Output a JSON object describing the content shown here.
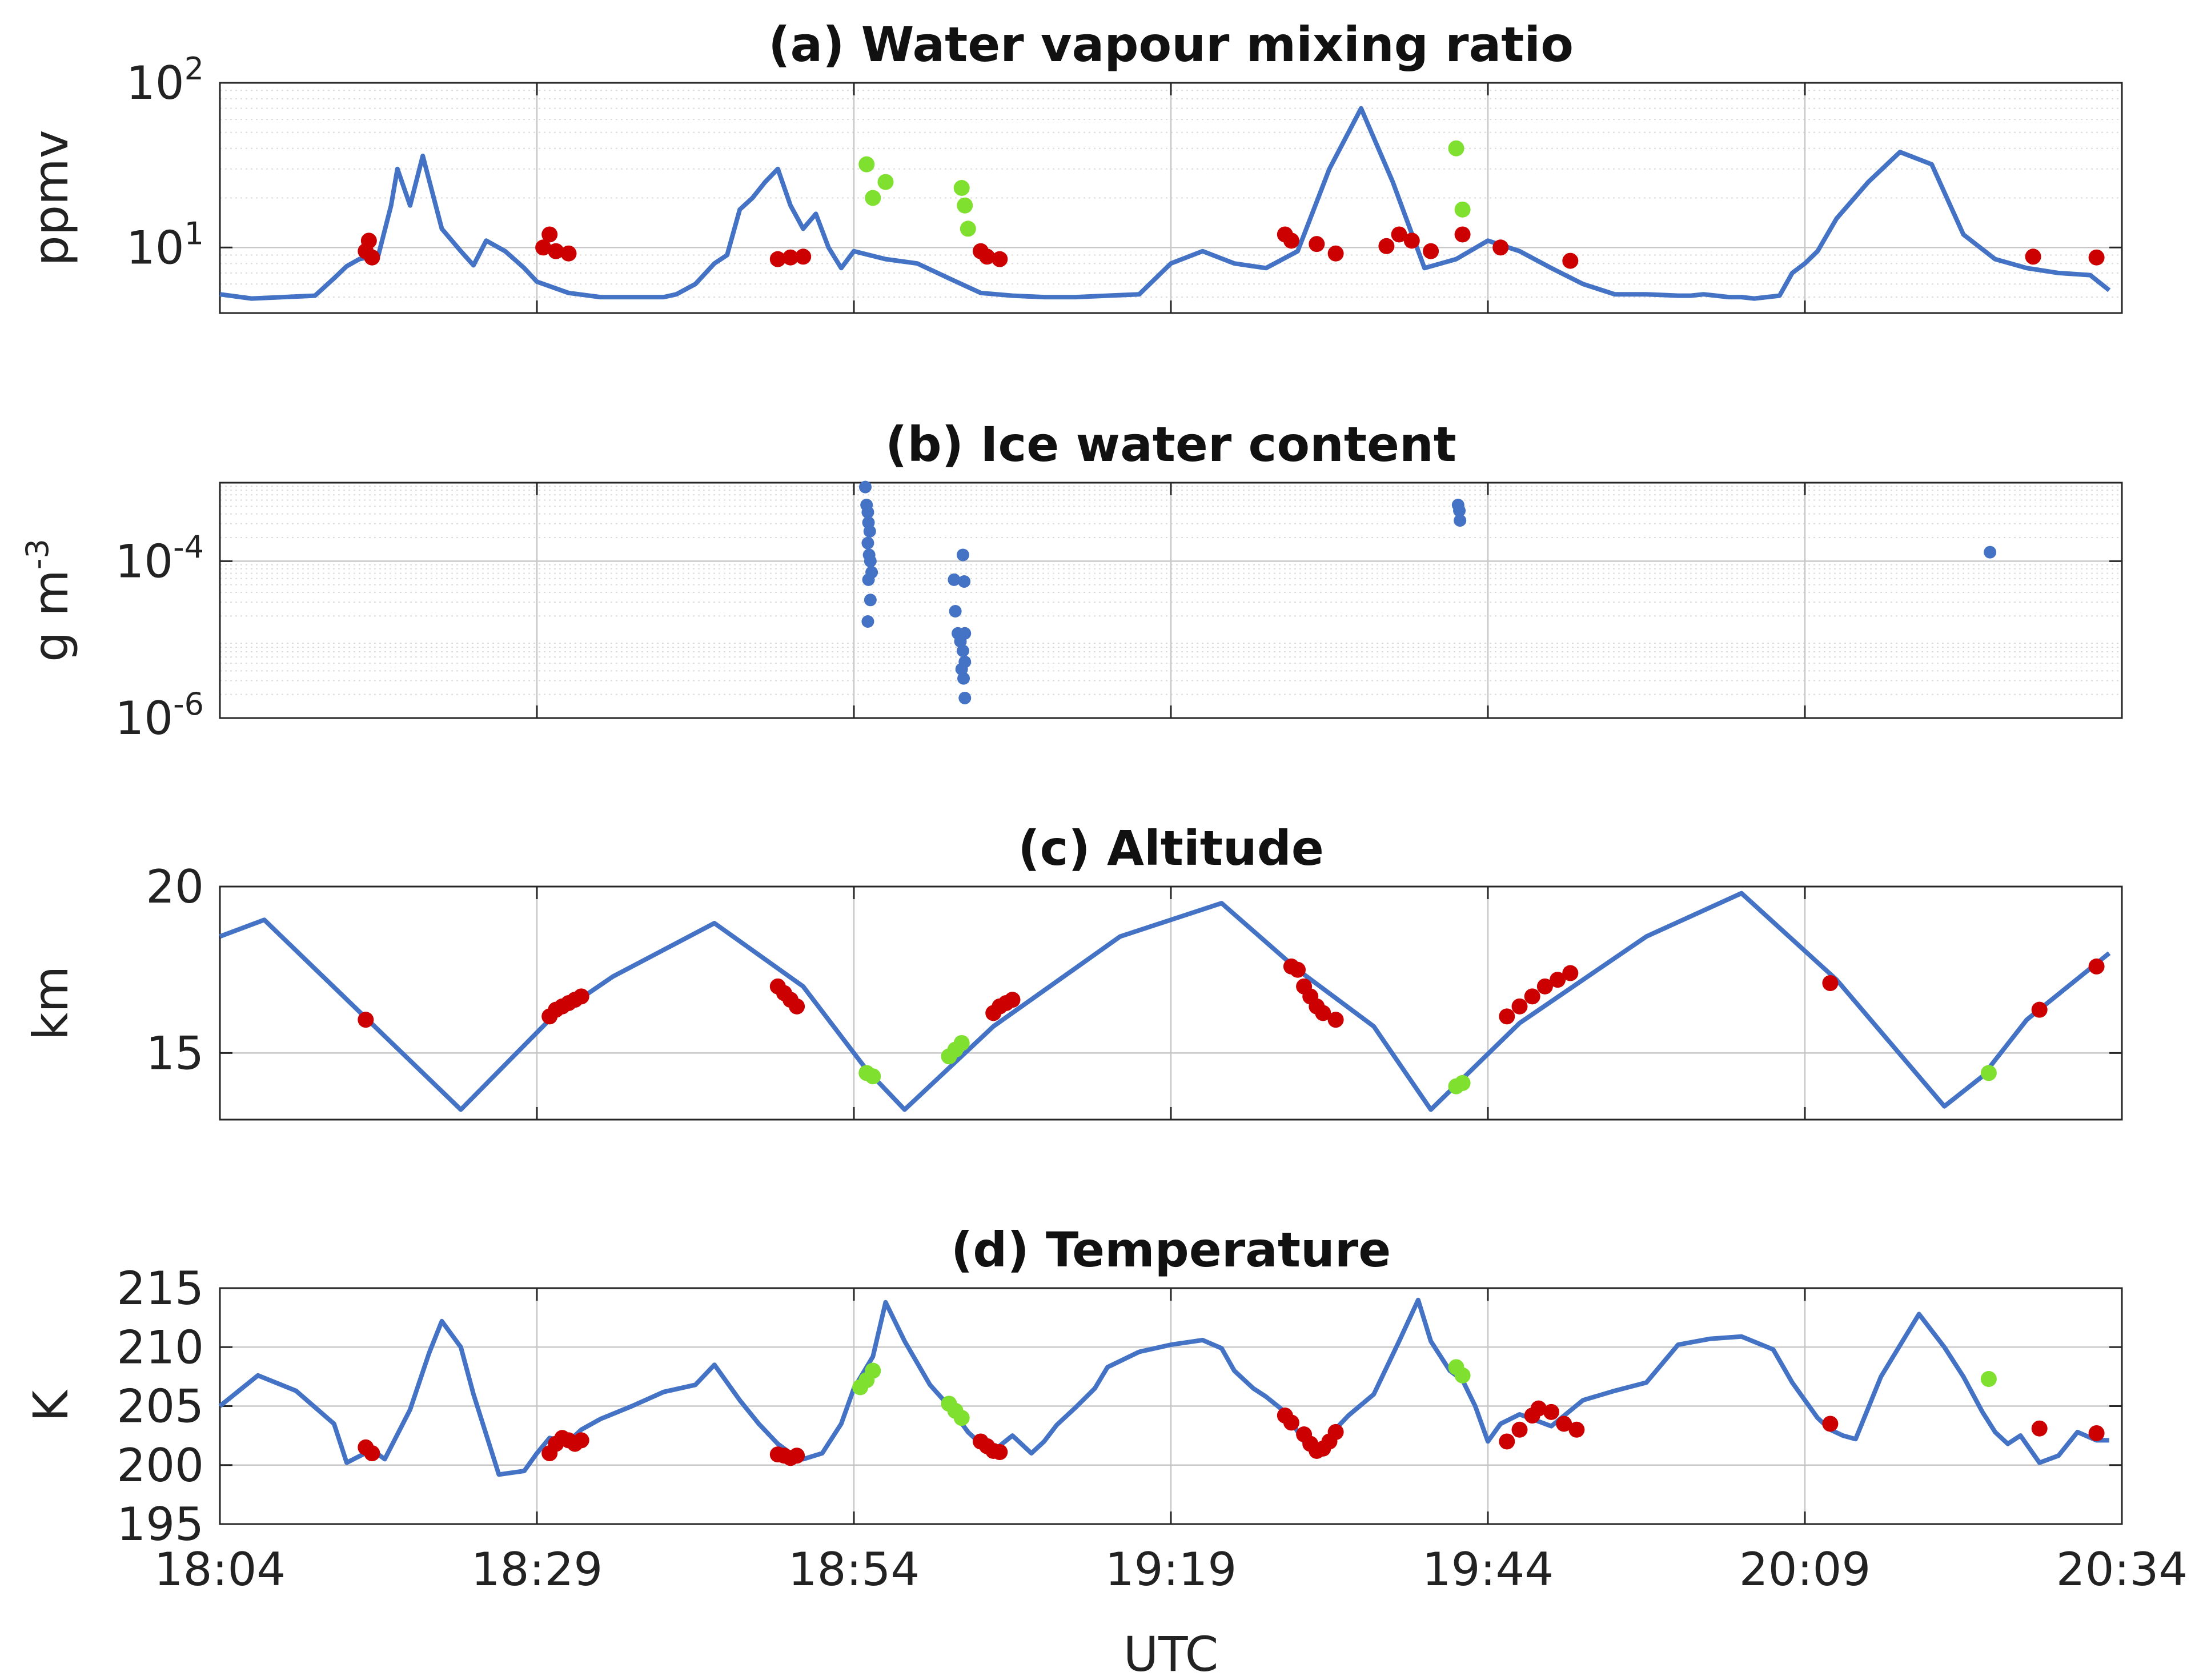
{
  "figure": {
    "xlabel": "UTC"
  },
  "time_axis": {
    "start": "18:04",
    "end": "20:34",
    "ticks": [
      "18:04",
      "18:29",
      "18:54",
      "19:19",
      "19:44",
      "20:09",
      "20:34"
    ],
    "tick_minutes": [
      0,
      25,
      50,
      75,
      100,
      125,
      150
    ]
  },
  "colors": {
    "series": "#4472c4",
    "red_marks": "#cc0000",
    "green_marks": "#7fe030",
    "grid": "#c8c8c8",
    "axes": "#262626"
  },
  "chart_data": [
    {
      "type": "line",
      "title": "(a) Water vapour mixing ratio",
      "ylabel": "ppmv",
      "yscale": "log",
      "ylim": [
        4,
        100
      ],
      "yticks": [
        10,
        100
      ],
      "ytick_labels": [
        {
          "base": "10",
          "exp": "1"
        },
        {
          "base": "10",
          "exp": "2"
        }
      ],
      "grid": true,
      "x_minutes": [
        0,
        5,
        10,
        15,
        18,
        20,
        22,
        25,
        27,
        28,
        30,
        32,
        35,
        38,
        40,
        42,
        45,
        48,
        50,
        55,
        60,
        65,
        70,
        72,
        75,
        78,
        80,
        82,
        84,
        86,
        88,
        90,
        92,
        94,
        96,
        98,
        100,
        105,
        110,
        115,
        120,
        125,
        130,
        135,
        140,
        145,
        150,
        155,
        160,
        165,
        170,
        175,
        180,
        185,
        190,
        195,
        200,
        205,
        210,
        215,
        220,
        225,
        230,
        232,
        234,
        236,
        238,
        240,
        242,
        244,
        246,
        248,
        250,
        252,
        255,
        260,
        265,
        270,
        275,
        280,
        285,
        290,
        295,
        298
      ],
      "y": [
        5.2,
        4.9,
        5.0,
        5.1,
        6.5,
        7.7,
        8.5,
        9.0,
        18,
        30,
        18,
        36,
        13,
        9.5,
        7.8,
        11,
        9.5,
        7.5,
        6.2,
        5.3,
        5.0,
        5.0,
        5.0,
        5.2,
        6.0,
        8.0,
        9.0,
        17,
        20,
        25,
        30,
        18,
        13,
        16,
        10,
        7.5,
        9.5,
        8.5,
        8.0,
        6.5,
        5.3,
        5.1,
        5.0,
        5.0,
        5.1,
        5.2,
        8.0,
        9.5,
        8.0,
        7.5,
        9.5,
        30,
        70,
        25,
        7.5,
        8.5,
        11,
        9.5,
        7.5,
        6.0,
        5.2,
        5.2,
        5.1,
        5.1,
        5.2,
        5.1,
        5.0,
        5.0,
        4.9,
        5.0,
        5.1,
        7.0,
        8.0,
        9.5,
        15,
        25,
        38,
        32,
        12,
        8.5,
        7.5,
        7.0,
        6.8,
        5.5
      ],
      "red_marks": [
        [
          23,
          9.5
        ],
        [
          23.5,
          11
        ],
        [
          24,
          8.7
        ],
        [
          51,
          10
        ],
        [
          52,
          12
        ],
        [
          53,
          9.5
        ],
        [
          55,
          9.2
        ],
        [
          88,
          8.5
        ],
        [
          90,
          8.7
        ],
        [
          92,
          8.8
        ],
        [
          120,
          9.5
        ],
        [
          121,
          8.8
        ],
        [
          123,
          8.5
        ],
        [
          168,
          12
        ],
        [
          169,
          11
        ],
        [
          173,
          10.5
        ],
        [
          176,
          9.2
        ],
        [
          184,
          10.2
        ],
        [
          186,
          12
        ],
        [
          188,
          11
        ],
        [
          191,
          9.5
        ],
        [
          196,
          12
        ],
        [
          202,
          10
        ],
        [
          213,
          8.3
        ],
        [
          286,
          8.8
        ],
        [
          296,
          8.7
        ]
      ],
      "green_marks": [
        [
          102,
          32
        ],
        [
          103,
          20
        ],
        [
          105,
          25
        ],
        [
          117,
          23
        ],
        [
          117.5,
          18
        ],
        [
          118,
          13
        ],
        [
          195,
          40
        ],
        [
          196,
          17
        ]
      ]
    },
    {
      "type": "scatter",
      "title": "(b) Ice water content",
      "ylabel": "g m",
      "ylabel_exp": "-3",
      "yscale": "log",
      "ylim": [
        1e-06,
        0.001
      ],
      "yticks": [
        1e-06,
        0.0001
      ],
      "ytick_labels": [
        {
          "base": "10",
          "exp": "-6"
        },
        {
          "base": "10",
          "exp": "-4"
        }
      ],
      "grid": true,
      "points": [
        [
          101.8,
          0.00088
        ],
        [
          102.0,
          0.00052
        ],
        [
          102.2,
          0.00042
        ],
        [
          102.3,
          0.00031
        ],
        [
          102.5,
          0.00024
        ],
        [
          102.2,
          0.00017
        ],
        [
          102.4,
          0.00012
        ],
        [
          102.6,
          0.0001
        ],
        [
          102.8,
          7.2e-05
        ],
        [
          102.3,
          5.8e-05
        ],
        [
          102.6,
          3.2e-05
        ],
        [
          102.2,
          1.7e-05
        ],
        [
          115.8,
          5.8e-05
        ],
        [
          116.0,
          2.3e-05
        ],
        [
          116.4,
          1.2e-05
        ],
        [
          116.8,
          9.5e-06
        ],
        [
          117.2,
          7.2e-06
        ],
        [
          117.5,
          5.2e-06
        ],
        [
          117.0,
          4.2e-06
        ],
        [
          117.3,
          3.2e-06
        ],
        [
          117.5,
          1.8e-06
        ],
        [
          117.5,
          1.2e-05
        ],
        [
          117.2,
          0.00012
        ],
        [
          117.4,
          5.5e-05
        ],
        [
          195.3,
          0.00052
        ],
        [
          195.5,
          0.00044
        ],
        [
          195.6,
          0.00033
        ],
        [
          279.2,
          0.00013
        ]
      ]
    },
    {
      "type": "line",
      "title": "(c) Altitude",
      "ylabel": "km",
      "ylim": [
        13,
        20
      ],
      "yticks": [
        15,
        20
      ],
      "ytick_labels": [
        "15",
        "20"
      ],
      "grid": true,
      "x_minutes": [
        0,
        7,
        38,
        52,
        62,
        78,
        92,
        102,
        108,
        122,
        142,
        158,
        170,
        182,
        191,
        205,
        225,
        240,
        255,
        272,
        278,
        285,
        298
      ],
      "y": [
        18.5,
        19.0,
        13.3,
        16.0,
        17.3,
        18.9,
        17.0,
        14.5,
        13.3,
        15.8,
        18.5,
        19.5,
        17.5,
        15.8,
        13.3,
        15.9,
        18.5,
        19.8,
        17.2,
        13.4,
        14.3,
        16.0,
        18.0
      ],
      "red_marks": [
        [
          23,
          16.0
        ],
        [
          52,
          16.1
        ],
        [
          53,
          16.3
        ],
        [
          54,
          16.4
        ],
        [
          55,
          16.5
        ],
        [
          56,
          16.6
        ],
        [
          57,
          16.7
        ],
        [
          88,
          17.0
        ],
        [
          89,
          16.8
        ],
        [
          90,
          16.6
        ],
        [
          91,
          16.4
        ],
        [
          122,
          16.2
        ],
        [
          123,
          16.4
        ],
        [
          124,
          16.5
        ],
        [
          125,
          16.6
        ],
        [
          169,
          17.6
        ],
        [
          170,
          17.5
        ],
        [
          171,
          17.0
        ],
        [
          172,
          16.7
        ],
        [
          173,
          16.4
        ],
        [
          174,
          16.2
        ],
        [
          176,
          16.0
        ],
        [
          203,
          16.1
        ],
        [
          205,
          16.4
        ],
        [
          207,
          16.7
        ],
        [
          209,
          17.0
        ],
        [
          211,
          17.2
        ],
        [
          213,
          17.4
        ],
        [
          254,
          17.1
        ],
        [
          287,
          16.3
        ],
        [
          296,
          17.6
        ]
      ],
      "green_marks": [
        [
          102,
          14.4
        ],
        [
          103,
          14.3
        ],
        [
          115,
          14.9
        ],
        [
          116,
          15.1
        ],
        [
          117,
          15.3
        ],
        [
          195,
          14.0
        ],
        [
          196,
          14.1
        ],
        [
          279,
          14.4
        ]
      ]
    },
    {
      "type": "line",
      "title": "(d) Temperature",
      "ylabel": "K",
      "ylim": [
        195,
        215
      ],
      "yticks": [
        195,
        200,
        205,
        210,
        215
      ],
      "ytick_labels": [
        "195",
        "200",
        "205",
        "210",
        "215"
      ],
      "grid": true,
      "x_minutes": [
        0,
        6,
        12,
        18,
        20,
        24,
        26,
        30,
        33,
        35,
        38,
        40,
        44,
        48,
        50,
        52,
        55,
        57,
        60,
        65,
        70,
        75,
        78,
        80,
        82,
        85,
        88,
        90,
        92,
        95,
        98,
        100,
        103,
        105,
        108,
        112,
        115,
        118,
        120,
        122,
        125,
        128,
        130,
        132,
        135,
        138,
        140,
        145,
        150,
        155,
        158,
        160,
        163,
        165,
        168,
        171,
        173,
        175,
        178,
        182,
        186,
        189,
        191,
        194,
        196,
        198,
        200,
        202,
        205,
        210,
        215,
        220,
        225,
        230,
        235,
        240,
        245,
        248,
        252,
        254,
        256,
        258,
        262,
        268,
        272,
        275,
        278,
        280,
        282,
        284,
        287,
        290,
        293,
        296,
        298
      ],
      "y": [
        205,
        207.6,
        206.3,
        203.5,
        200.2,
        201.3,
        200.5,
        204.7,
        209.5,
        212.2,
        210.0,
        206.0,
        199.2,
        199.5,
        201.0,
        202.3,
        202.0,
        203.0,
        203.9,
        205.0,
        206.2,
        206.8,
        208.5,
        207.0,
        205.5,
        203.5,
        201.8,
        201.0,
        200.5,
        201.0,
        203.5,
        206.5,
        209.2,
        213.8,
        210.5,
        206.8,
        205.0,
        202.8,
        201.8,
        201.2,
        202.5,
        201.0,
        202.0,
        203.4,
        204.9,
        206.5,
        208.3,
        209.6,
        210.2,
        210.6,
        209.9,
        208.0,
        206.5,
        205.8,
        204.5,
        202.0,
        200.8,
        202.5,
        204.2,
        206.0,
        210.5,
        214.0,
        210.5,
        208.0,
        207.2,
        205.0,
        202.0,
        203.5,
        204.3,
        203.3,
        205.5,
        206.3,
        207.0,
        210.2,
        210.7,
        210.9,
        209.8,
        207.0,
        204.0,
        203.0,
        202.5,
        202.2,
        207.5,
        212.8,
        210.0,
        207.5,
        204.5,
        202.8,
        201.8,
        202.5,
        200.2,
        200.8,
        202.8,
        202.1,
        202.1
      ],
      "red_marks": [
        [
          23,
          201.5
        ],
        [
          24,
          201.0
        ],
        [
          52,
          201.0
        ],
        [
          53,
          201.8
        ],
        [
          54,
          202.3
        ],
        [
          55,
          202.1
        ],
        [
          56,
          201.8
        ],
        [
          57,
          202.1
        ],
        [
          88,
          200.9
        ],
        [
          89,
          200.8
        ],
        [
          90,
          200.6
        ],
        [
          91,
          200.8
        ],
        [
          120,
          202.0
        ],
        [
          121,
          201.6
        ],
        [
          122,
          201.2
        ],
        [
          123,
          201.1
        ],
        [
          168,
          204.2
        ],
        [
          169,
          203.6
        ],
        [
          171,
          202.6
        ],
        [
          172,
          201.8
        ],
        [
          173,
          201.2
        ],
        [
          174,
          201.4
        ],
        [
          175,
          202.0
        ],
        [
          176,
          202.8
        ],
        [
          203,
          202.0
        ],
        [
          205,
          203.0
        ],
        [
          207,
          204.2
        ],
        [
          208,
          204.8
        ],
        [
          210,
          204.5
        ],
        [
          212,
          203.5
        ],
        [
          214,
          203.0
        ],
        [
          254,
          203.5
        ],
        [
          287,
          203.1
        ],
        [
          296,
          202.7
        ]
      ],
      "green_marks": [
        [
          101,
          206.6
        ],
        [
          102,
          207.2
        ],
        [
          103,
          208.0
        ],
        [
          115,
          205.2
        ],
        [
          116,
          204.6
        ],
        [
          117,
          204.0
        ],
        [
          195,
          208.3
        ],
        [
          196,
          207.6
        ],
        [
          279,
          207.3
        ]
      ]
    }
  ]
}
